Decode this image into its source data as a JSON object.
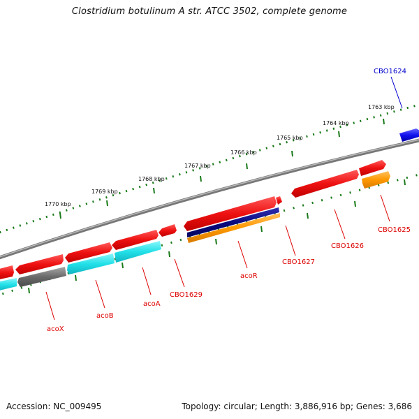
{
  "title": "Clostridium botulinum A str. ATCC 3502, complete genome",
  "footer": {
    "accession": "Accession: NC_009495",
    "summary": "Topology: circular; Length: 3,886,916 bp; Genes: 3,686"
  },
  "colors": {
    "backbone": "#8a8a8a",
    "ticks": "#1a7a1a",
    "label_red": "#dd0000",
    "label_blue": "#0000cc",
    "gene_red": "#ee1111",
    "gene_cyan": "#22e0e8",
    "gene_gray": "#6a6a6a",
    "gene_blue": "#1111ee",
    "gene_navy": "#0a0a80",
    "gene_orange": "#ff9900"
  },
  "scale_labels": [
    "1763 kbp",
    "1764 kbp",
    "1765 kbp",
    "1766 kbp",
    "1767 kbp",
    "1768 kbp",
    "1769 kbp",
    "1770 kbp"
  ],
  "gene_labels": [
    {
      "text": "CBO1624",
      "color": "blue"
    },
    {
      "text": "CBO1625",
      "color": "red"
    },
    {
      "text": "CBO1626",
      "color": "red"
    },
    {
      "text": "CBO1627",
      "color": "red"
    },
    {
      "text": "acoR",
      "color": "red"
    },
    {
      "text": "CBO1629",
      "color": "red"
    },
    {
      "text": "acoA",
      "color": "red"
    },
    {
      "text": "acoB",
      "color": "red"
    },
    {
      "text": "acoX",
      "color": "red"
    }
  ]
}
